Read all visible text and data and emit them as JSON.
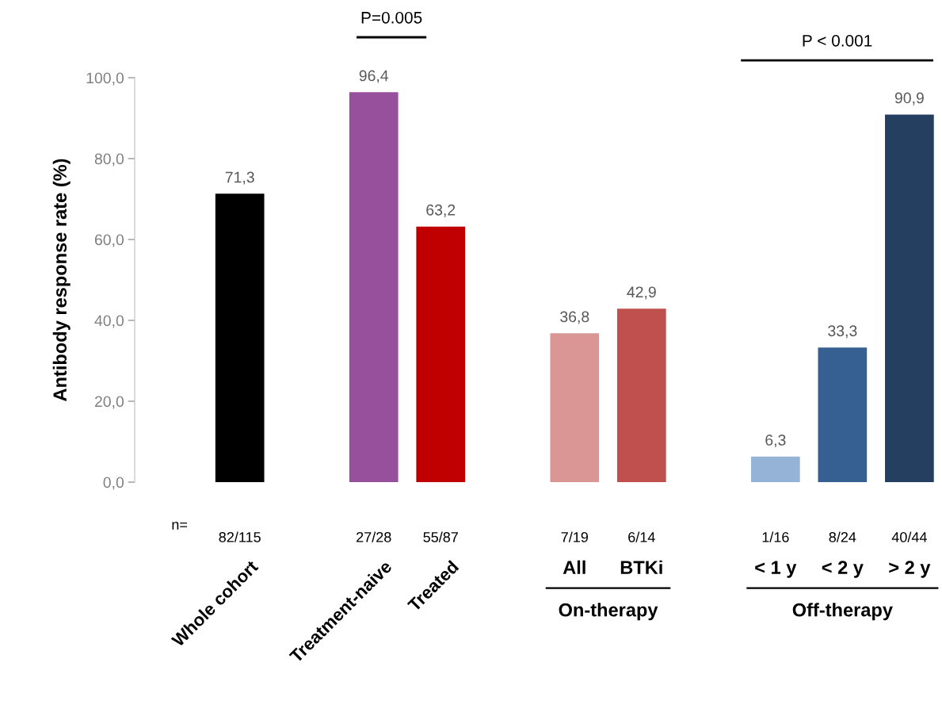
{
  "chart_data": {
    "type": "bar",
    "ylabel": "Antibody response rate (%)",
    "categories": [
      "82/115",
      null,
      "27/28",
      "55/87",
      null,
      "7/19",
      "6/14",
      null,
      "1/16",
      "8/24",
      "40/44"
    ],
    "values": [
      71.3,
      null,
      96.4,
      63.2,
      null,
      36.8,
      42.9,
      null,
      6.3,
      33.3,
      90.9
    ],
    "colors": [
      "#000000",
      "#ffffff",
      "#97509c",
      "#c00000",
      "#ffffff",
      "#da9694",
      "#c0504d",
      "#ffffff",
      "#95b3d7",
      "#366092",
      "#243f60"
    ],
    "value_labels": [
      "71,3",
      null,
      "96,4",
      "63,2",
      null,
      "36,8",
      "42,9",
      null,
      "6,3",
      "33,3",
      "90,9"
    ],
    "ylim": [
      0,
      100
    ],
    "yticks": [
      {
        "value": 0,
        "label": "0,0"
      },
      {
        "value": 20,
        "label": "20,0"
      },
      {
        "value": 40,
        "label": "40,0"
      },
      {
        "value": 60,
        "label": "60,0"
      },
      {
        "value": 80,
        "label": "80,0"
      },
      {
        "value": 100,
        "label": "100,0"
      }
    ],
    "grid": false,
    "annotations": [
      "n=",
      "Whole cohort",
      "Treatment-naive",
      "Treated",
      "All",
      "BTKi",
      "< 1 y",
      "< 2 y",
      "> 2 y",
      "On-therapy",
      "Off-therapy",
      "P=0.005",
      "P < 0.001"
    ]
  }
}
